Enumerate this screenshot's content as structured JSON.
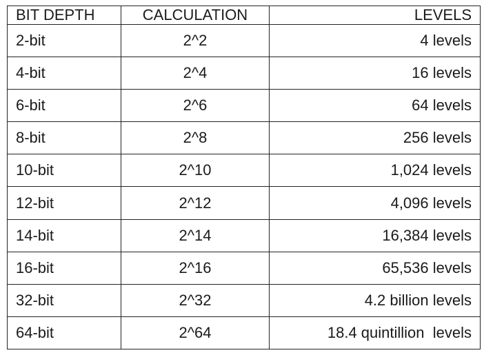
{
  "table": {
    "headers": [
      "BIT DEPTH",
      "CALCULATION",
      "LEVELS"
    ],
    "rows": [
      [
        "2-bit",
        "2^2",
        "4 levels"
      ],
      [
        "4-bit",
        "2^4",
        "16 levels"
      ],
      [
        "6-bit",
        "2^6",
        "64 levels"
      ],
      [
        "8-bit",
        "2^8",
        "256 levels"
      ],
      [
        "10-bit",
        "2^10",
        "1,024 levels"
      ],
      [
        "12-bit",
        "2^12",
        "4,096 levels"
      ],
      [
        "14-bit",
        "2^14",
        "16,384 levels"
      ],
      [
        "16-bit",
        "2^16",
        "65,536 levels"
      ],
      [
        "32-bit",
        "2^32",
        "4.2 billion levels"
      ],
      [
        "64-bit",
        "2^64",
        "18.4 quintillion  levels"
      ]
    ]
  }
}
